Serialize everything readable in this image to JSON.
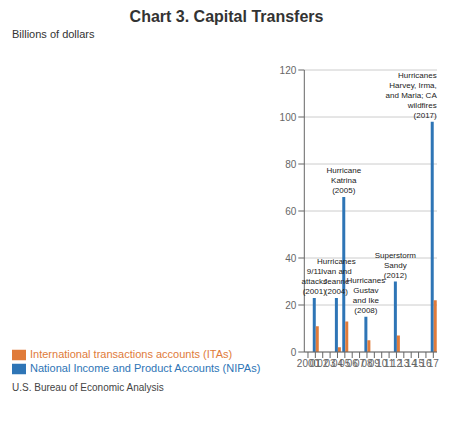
{
  "chart_data": {
    "type": "bar",
    "title": "Chart 3. Capital Transfers",
    "y_label": "Billions of dollars",
    "footnote": "U.S. Bureau of Economic Analysis",
    "categories": [
      "2000",
      "01",
      "02",
      "03",
      "04",
      "05",
      "06",
      "07",
      "08",
      "09",
      "10",
      "11",
      "12",
      "13",
      "14",
      "15",
      "16",
      "17"
    ],
    "series": [
      {
        "name": "National Income and Product Accounts (NIPAs)",
        "color": "#2E75B6",
        "values": [
          0,
          23,
          0,
          0,
          23,
          66,
          0,
          0,
          15,
          0,
          0,
          0,
          30,
          0,
          0,
          0,
          0,
          98
        ]
      },
      {
        "name": "International transactions accounts (ITAs)",
        "color": "#E07B3A",
        "values": [
          0,
          11,
          0,
          0,
          2,
          13,
          0,
          0,
          5,
          0,
          0,
          0,
          7,
          0,
          0,
          0,
          0,
          22
        ]
      }
    ],
    "ylim": [
      0,
      120
    ],
    "yticks": [
      0,
      20,
      40,
      60,
      80,
      100,
      120
    ],
    "grid": true,
    "legend": "bottom",
    "annotations": [
      {
        "text": "9/11\nattacks\n(2001)",
        "x": "01",
        "series": "National Income and Product Accounts (NIPAs)"
      },
      {
        "text": "Hurricanes\nIvan and\nJeanne\n(2004)",
        "x": "04",
        "series": "National Income and Product Accounts (NIPAs)"
      },
      {
        "text": "Hurricane\nKatrina\n(2005)",
        "x": "05",
        "series": "National Income and Product Accounts (NIPAs)"
      },
      {
        "text": "Hurricanes\nGustav\nand Ike\n(2008)",
        "x": "08",
        "series": "National Income and Product Accounts (NIPAs)"
      },
      {
        "text": "Superstorm\nSandy\n(2012)",
        "x": "12",
        "series": "National Income and Product Accounts (NIPAs)"
      },
      {
        "text": "Hurricanes\nHarvey, Irma,\nand Maria; CA\nwildfires\n(2017)",
        "x": "17",
        "series": "National Income and Product Accounts (NIPAs)"
      }
    ]
  }
}
